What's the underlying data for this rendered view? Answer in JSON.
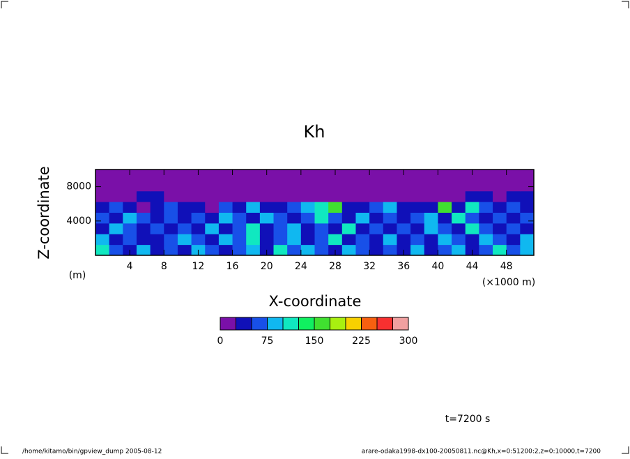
{
  "chart_data": {
    "type": "heatmap",
    "title": "Kh",
    "x_label": "X-coordinate",
    "x_unit": "(×1000 m)",
    "y_label": "Z-coordinate",
    "y_unit": "(m)",
    "time_label": "t=7200 s",
    "footer_left": "/home/kitamo/bin/gpview_dump  2005-08-12",
    "footer_right": "arare-odaka1998-dx100-20050811.nc@Kh,x=0:51200:2,z=0:10000,t=7200",
    "xlim": [
      0,
      51.2
    ],
    "xticks": [
      4,
      8,
      12,
      16,
      20,
      24,
      28,
      32,
      36,
      40,
      44,
      48
    ],
    "ylim": [
      0,
      10000
    ],
    "yticks": [
      4000,
      8000
    ],
    "x": [
      0.8,
      2.4,
      4.0,
      5.6,
      7.2,
      8.8,
      10.4,
      12.0,
      13.6,
      15.2,
      16.8,
      18.4,
      20.0,
      21.6,
      23.2,
      24.8,
      26.4,
      28.0,
      29.6,
      31.2,
      32.8,
      34.4,
      36.0,
      37.6,
      39.2,
      40.8,
      42.4,
      44.0,
      45.6,
      47.2,
      48.8,
      50.4
    ],
    "y": [
      625,
      1875,
      3125,
      4375,
      5625,
      6875,
      8125,
      9375
    ],
    "z": [
      [
        100,
        60,
        40,
        90,
        40,
        60,
        40,
        90,
        60,
        40,
        60,
        90,
        40,
        100,
        60,
        90,
        60,
        40,
        90,
        60,
        40,
        60,
        40,
        90,
        40,
        60,
        90,
        40,
        60,
        100,
        60,
        90
      ],
      [
        90,
        40,
        60,
        40,
        30,
        60,
        90,
        60,
        40,
        90,
        60,
        110,
        40,
        60,
        90,
        40,
        60,
        100,
        40,
        60,
        40,
        90,
        40,
        60,
        40,
        90,
        60,
        40,
        90,
        60,
        40,
        90
      ],
      [
        40,
        90,
        60,
        40,
        60,
        30,
        60,
        40,
        90,
        40,
        60,
        100,
        40,
        60,
        90,
        40,
        60,
        40,
        100,
        40,
        60,
        40,
        60,
        40,
        90,
        60,
        40,
        100,
        60,
        40,
        60,
        40
      ],
      [
        60,
        40,
        90,
        60,
        40,
        60,
        30,
        60,
        40,
        90,
        60,
        40,
        90,
        60,
        40,
        60,
        100,
        60,
        40,
        90,
        40,
        60,
        40,
        60,
        90,
        40,
        100,
        60,
        40,
        60,
        40,
        60
      ],
      [
        40,
        60,
        30,
        10,
        40,
        60,
        40,
        30,
        10,
        60,
        30,
        90,
        40,
        30,
        60,
        90,
        110,
        160,
        40,
        30,
        60,
        90,
        40,
        30,
        30,
        160,
        40,
        110,
        60,
        40,
        60,
        40
      ],
      [
        10,
        10,
        10,
        30,
        30,
        10,
        10,
        10,
        10,
        10,
        10,
        10,
        10,
        10,
        10,
        10,
        10,
        10,
        10,
        10,
        10,
        10,
        10,
        10,
        10,
        10,
        10,
        30,
        30,
        10,
        30,
        30
      ],
      [
        10,
        10,
        10,
        10,
        10,
        10,
        10,
        10,
        10,
        10,
        10,
        10,
        10,
        10,
        10,
        10,
        10,
        10,
        10,
        10,
        10,
        10,
        10,
        10,
        10,
        10,
        10,
        10,
        10,
        10,
        10,
        10
      ],
      [
        10,
        10,
        10,
        10,
        10,
        10,
        10,
        10,
        10,
        10,
        10,
        10,
        10,
        10,
        10,
        10,
        10,
        10,
        10,
        10,
        10,
        10,
        10,
        10,
        10,
        10,
        10,
        10,
        10,
        10,
        10,
        10
      ]
    ],
    "levels": [
      0,
      25,
      50,
      75,
      100,
      125,
      150,
      175,
      200,
      225,
      250,
      275,
      300
    ],
    "colors": [
      "#7a10a8",
      "#1010b8",
      "#1850e8",
      "#10b8f0",
      "#10e8c0",
      "#10f060",
      "#40e030",
      "#a8f010",
      "#f8d000",
      "#f86010",
      "#f83030",
      "#f0a0a0"
    ],
    "colorbar_ticks": [
      0,
      75,
      150,
      225,
      300
    ]
  }
}
